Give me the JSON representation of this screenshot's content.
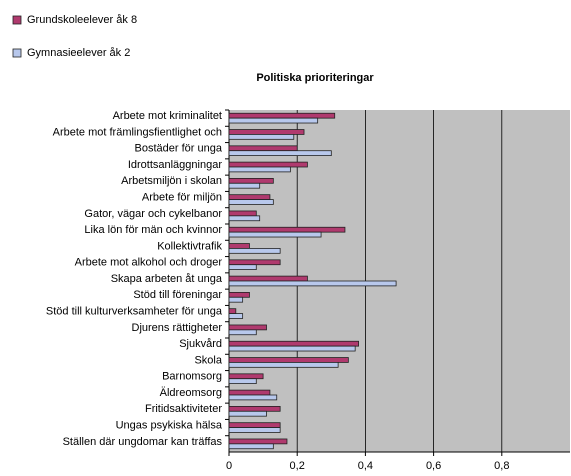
{
  "chart_data": {
    "type": "barh",
    "title": "Politiska prioriteringar",
    "categories": [
      "Arbete mot kriminalitet",
      "Arbete mot främlingsfientlighet och",
      "Bostäder för unga",
      "Idrottsanläggningar",
      "Arbetsmiljön i skolan",
      "Arbete för miljön",
      "Gator, vägar och cykelbanor",
      "Lika lön för män och kvinnor",
      "Kollektivtrafik",
      "Arbete mot alkohol och droger",
      "Skapa arbeten åt unga",
      "Stöd till föreningar",
      "Stöd till kulturverksamheter för unga",
      "Djurens rättigheter",
      "Sjukvård",
      "Skola",
      "Barnomsorg",
      "Äldreomsorg",
      "Fritidsaktiviteter",
      "Ungas psykiska hälsa",
      "Ställen där ungdomar kan träffas"
    ],
    "series": [
      {
        "name": "Grundskoleelever åk 8",
        "color": "#b03a6e",
        "values": [
          0.31,
          0.22,
          0.2,
          0.23,
          0.13,
          0.12,
          0.08,
          0.34,
          0.06,
          0.15,
          0.23,
          0.06,
          0.02,
          0.11,
          0.38,
          0.35,
          0.1,
          0.12,
          0.15,
          0.15,
          0.17
        ]
      },
      {
        "name": "Gymnasieelever åk 2",
        "color": "#b8c8ec",
        "values": [
          0.26,
          0.19,
          0.3,
          0.18,
          0.09,
          0.13,
          0.09,
          0.27,
          0.15,
          0.08,
          0.49,
          0.04,
          0.04,
          0.08,
          0.37,
          0.32,
          0.08,
          0.14,
          0.11,
          0.15,
          0.13
        ]
      }
    ],
    "xlim": [
      0,
      1
    ],
    "xticks": [
      0,
      {
        "value": 0.2,
        "label": "0,2"
      },
      {
        "value": 0.4,
        "label": "0,4"
      },
      {
        "value": 0.6,
        "label": "0,6"
      },
      {
        "value": 0.8,
        "label": "0,8"
      }
    ],
    "grid": true,
    "legend": "top-left"
  }
}
